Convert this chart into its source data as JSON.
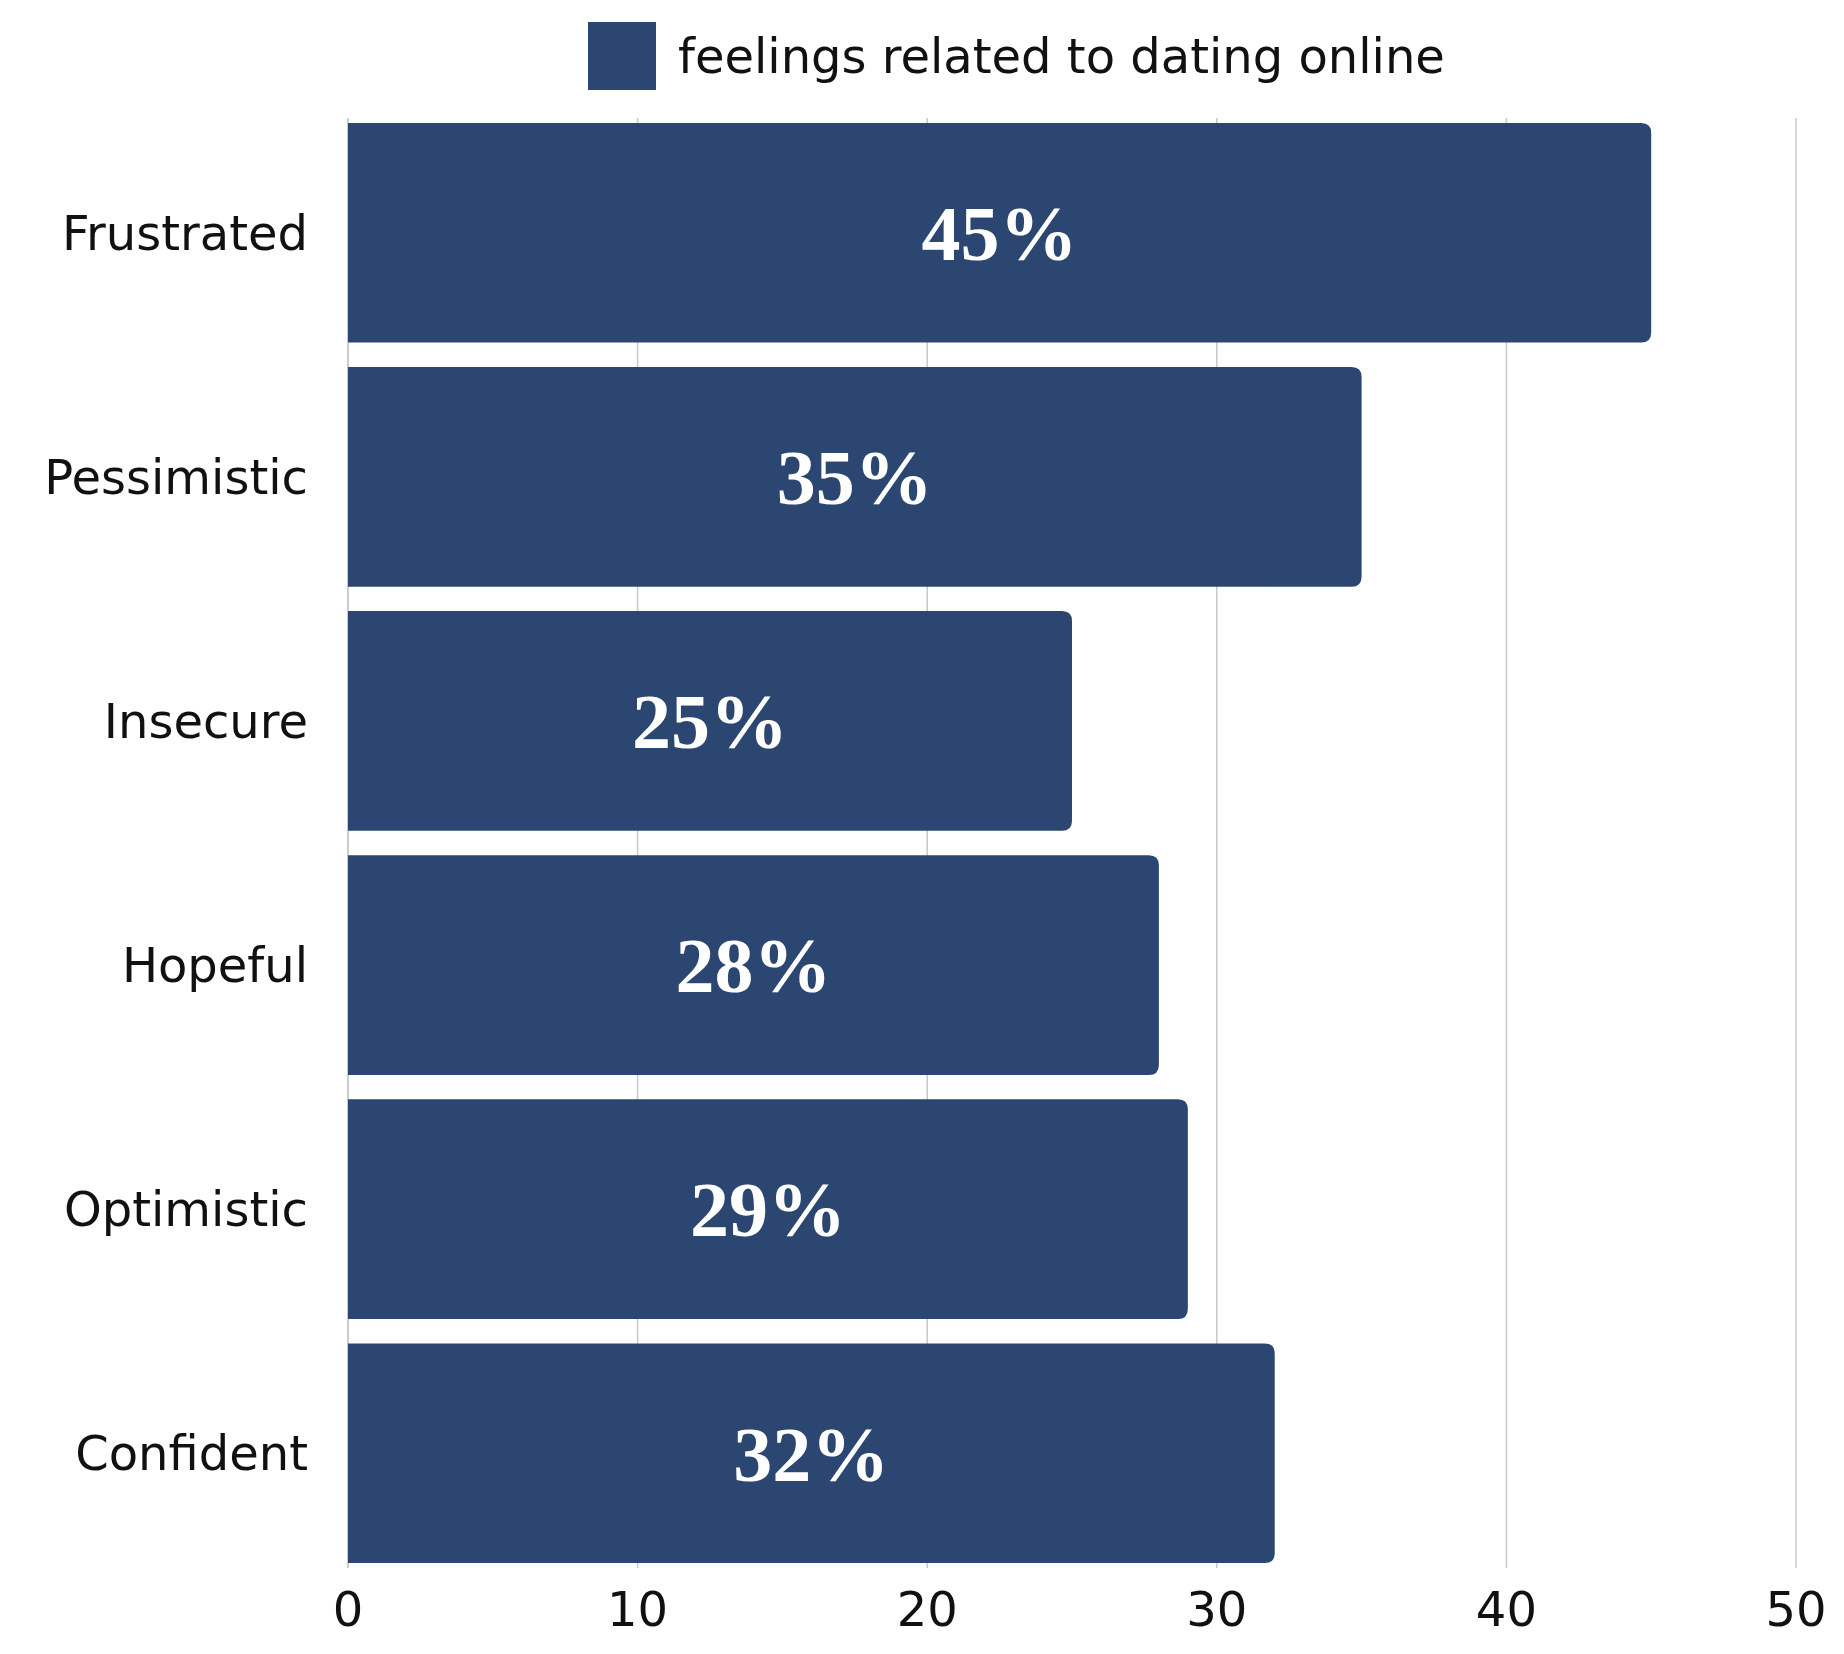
{
  "chart_data": {
    "type": "bar",
    "orientation": "horizontal",
    "categories": [
      "Frustrated",
      "Pessimistic",
      "Insecure",
      "Hopeful",
      "Optimistic",
      "Confident"
    ],
    "series": [
      {
        "name": "feelings related to dating online",
        "color": "#2c4672",
        "values": [
          45,
          35,
          25,
          28,
          29,
          32
        ],
        "value_labels": [
          "45%",
          "35%",
          "25%",
          "28%",
          "29%",
          "32%"
        ]
      }
    ],
    "xlim": [
      0,
      50
    ],
    "xticks": [
      0,
      10,
      20,
      30,
      40,
      50
    ],
    "grid": "x",
    "legend": "top"
  }
}
